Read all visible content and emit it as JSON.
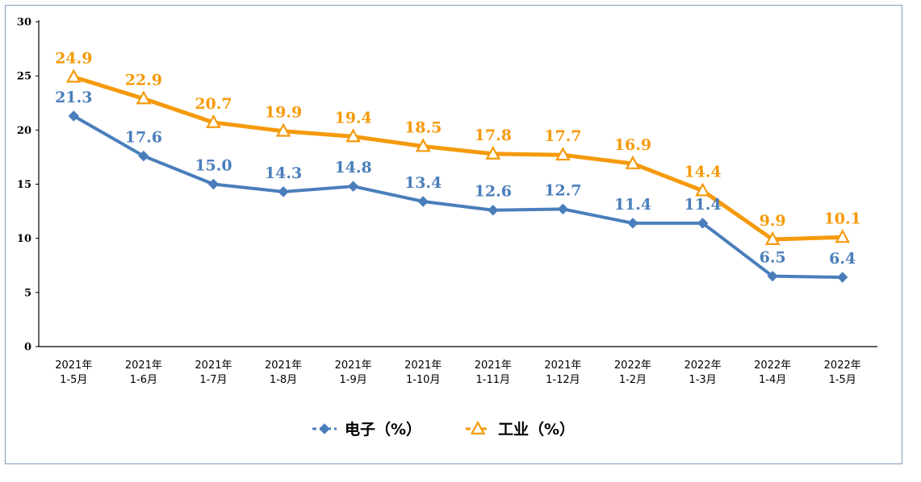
{
  "chart_data": {
    "type": "line",
    "categories": [
      [
        "2021年",
        "1-5月"
      ],
      [
        "2021年",
        "1-6月"
      ],
      [
        "2021年",
        "1-7月"
      ],
      [
        "2021年",
        "1-8月"
      ],
      [
        "2021年",
        "1-9月"
      ],
      [
        "2021年",
        "1-10月"
      ],
      [
        "2021年",
        "1-11月"
      ],
      [
        "2021年",
        "1-12月"
      ],
      [
        "2022年",
        "1-2月"
      ],
      [
        "2022年",
        "1-3月"
      ],
      [
        "2022年",
        "1-4月"
      ],
      [
        "2022年",
        "1-5月"
      ]
    ],
    "series": [
      {
        "name": "电子（%）",
        "marker": "diamond",
        "color": "#4a7ebb",
        "values": [
          21.3,
          17.6,
          15.0,
          14.3,
          14.8,
          13.4,
          12.6,
          12.7,
          11.4,
          11.4,
          6.5,
          6.4
        ],
        "labels": [
          "21.3",
          "17.6",
          "15.0",
          "14.3",
          "14.8",
          "13.4",
          "12.6",
          "12.7",
          "11.4",
          "11.4",
          "6.5",
          "6.4"
        ]
      },
      {
        "name": "工业（%）",
        "marker": "triangle",
        "color": "#f59a0c",
        "values": [
          24.9,
          22.9,
          20.7,
          19.9,
          19.4,
          18.5,
          17.8,
          17.7,
          16.9,
          14.4,
          9.9,
          10.1
        ],
        "labels": [
          "24.9",
          "22.9",
          "20.7",
          "19.9",
          "19.4",
          "18.5",
          "17.8",
          "17.7",
          "16.9",
          "14.4",
          "9.9",
          "10.1"
        ]
      }
    ],
    "yticks": [
      0,
      5,
      10,
      15,
      20,
      25,
      30
    ],
    "ylim": [
      0,
      30
    ],
    "grid": false,
    "legend_position": "bottom"
  }
}
